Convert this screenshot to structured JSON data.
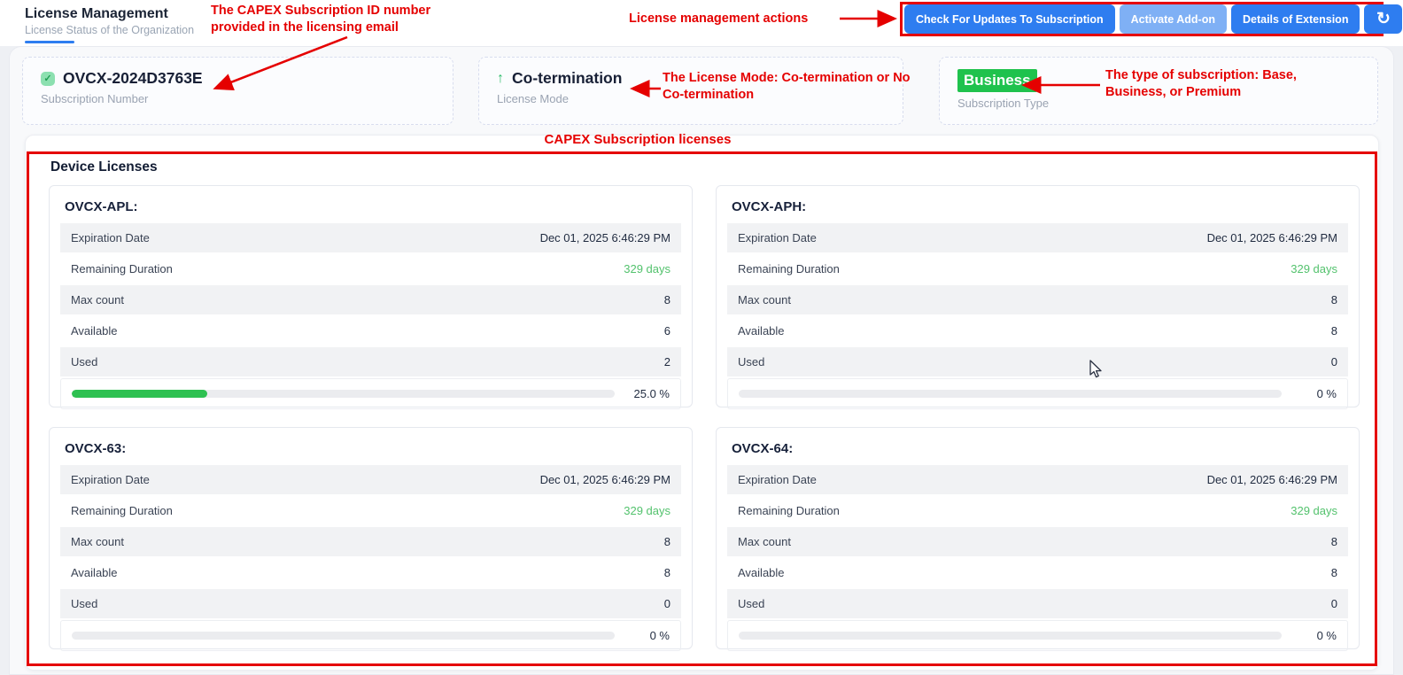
{
  "header": {
    "title": "License Management",
    "subtitle": "License Status of the Organization",
    "actions": [
      {
        "label": "Check For Updates To Subscription",
        "variant": "primary"
      },
      {
        "label": "Activate Add-on",
        "variant": "light"
      },
      {
        "label": "Details of Extension",
        "variant": "primary"
      },
      {
        "label": "↻",
        "variant": "primary",
        "icon": "refresh-icon"
      }
    ]
  },
  "summary_cards": {
    "subscription": {
      "icon_glyph": "✓",
      "value": "OVCX-2024D3763E",
      "label": "Subscription Number"
    },
    "mode": {
      "icon_glyph": "↑",
      "value": "Co-termination",
      "label": "License Mode"
    },
    "type": {
      "value": "Business",
      "label": "Subscription Type"
    }
  },
  "annotations": {
    "subscription_id": "The CAPEX Subscription ID number provided in the licensing email",
    "actions": "License management actions",
    "license_mode": "The License Mode: Co-termination or No Co-termination",
    "subscription_type": "The type of subscription: Base, Business, or Premium",
    "capex_licenses": "CAPEX Subscription licenses"
  },
  "device_licenses": {
    "title": "Device Licenses",
    "row_labels": {
      "expiration": "Expiration Date",
      "remaining": "Remaining Duration",
      "max": "Max count",
      "available": "Available",
      "used": "Used"
    },
    "cards": [
      {
        "name": "OVCX-APL:",
        "expiration": "Dec 01, 2025 6:46:29 PM",
        "remaining": "329 days",
        "max": "8",
        "available": "6",
        "used": "2",
        "percent": 25,
        "percent_label": "25.0 %"
      },
      {
        "name": "OVCX-APH:",
        "expiration": "Dec 01, 2025 6:46:29 PM",
        "remaining": "329 days",
        "max": "8",
        "available": "8",
        "used": "0",
        "percent": 0,
        "percent_label": "0 %"
      },
      {
        "name": "OVCX-63:",
        "expiration": "Dec 01, 2025 6:46:29 PM",
        "remaining": "329 days",
        "max": "8",
        "available": "8",
        "used": "0",
        "percent": 0,
        "percent_label": "0 %"
      },
      {
        "name": "OVCX-64:",
        "expiration": "Dec 01, 2025 6:46:29 PM",
        "remaining": "329 days",
        "max": "8",
        "available": "8",
        "used": "0",
        "percent": 0,
        "percent_label": "0 %"
      }
    ]
  },
  "colors": {
    "accent_blue": "#2e7df0",
    "light_blue": "#7fb0f5",
    "annotation_red": "#e50000",
    "badge_green": "#1fc24d",
    "success_green": "#53c26d",
    "progress_green": "#2ec151"
  }
}
